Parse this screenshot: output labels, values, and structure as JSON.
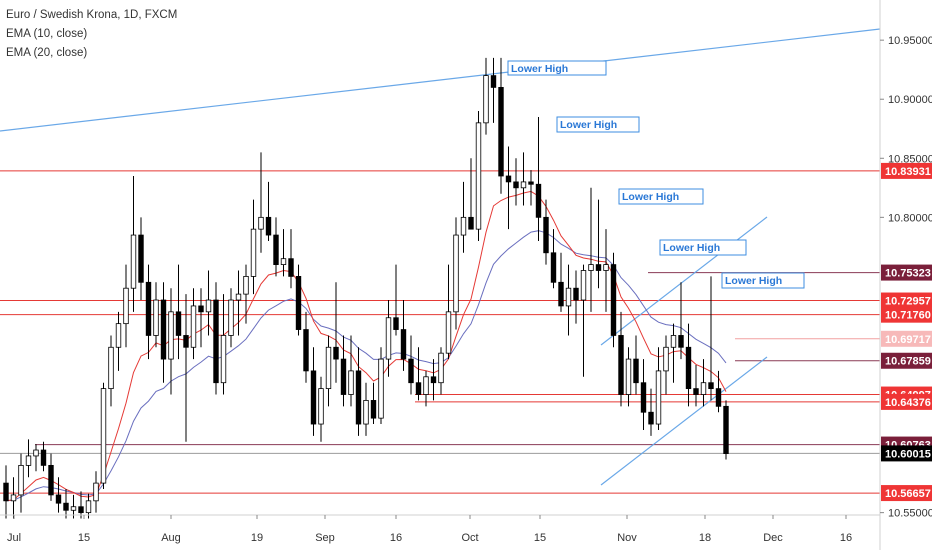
{
  "header": {
    "symbol": "Euro / Swedish Krona, 1D, FXCM",
    "indicator_1": "EMA (10, close)",
    "indicator_2": "EMA (20, close)"
  },
  "colors": {
    "bull": "#ffffff",
    "bear": "#000000",
    "ema10": "#e53935",
    "ema20": "#6a6fbf",
    "trendline": "#6aa8e8",
    "hline_red": "#e53935",
    "label_red": "#ef3535",
    "label_dark_red": "#7a1f3a",
    "label_black": "#000000",
    "annotation_border": "#3d8ee0",
    "annotation_text": "#2a78d6"
  },
  "chart_data": {
    "type": "candlestick",
    "ylim": [
      10.548,
      10.984
    ],
    "y_ticks": [
      "10.95000",
      "10.90000",
      "10.85000",
      "10.80000",
      "10.55000"
    ],
    "x_ticks": [
      "Jul",
      "15",
      "Aug",
      "19",
      "Sep",
      "16",
      "Oct",
      "15",
      "Nov",
      "18",
      "Dec",
      "16"
    ],
    "price_labels": [
      {
        "value": "10.83931",
        "style": "red"
      },
      {
        "value": "10.75323",
        "style": "dark"
      },
      {
        "value": "10.72957",
        "style": "red"
      },
      {
        "value": "10.71760",
        "style": "red"
      },
      {
        "value": "10.69717",
        "style": "light"
      },
      {
        "value": "10.67859",
        "style": "dark"
      },
      {
        "value": "10.64997",
        "style": "red"
      },
      {
        "value": "10.64376",
        "style": "red"
      },
      {
        "value": "10.60763",
        "style": "dark"
      },
      {
        "value": "10.60015",
        "style": "black"
      },
      {
        "value": "10.56657",
        "style": "red"
      }
    ],
    "annotations": [
      "Lower High",
      "Lower High",
      "Lower High",
      "Lower High",
      "Lower High"
    ],
    "candles": [
      {
        "o": 10.575,
        "h": 10.59,
        "l": 10.545,
        "c": 10.56
      },
      {
        "o": 10.56,
        "h": 10.58,
        "l": 10.545,
        "c": 10.565
      },
      {
        "o": 10.565,
        "h": 10.6,
        "l": 10.55,
        "c": 10.59
      },
      {
        "o": 10.59,
        "h": 10.612,
        "l": 10.58,
        "c": 10.598
      },
      {
        "o": 10.598,
        "h": 10.608,
        "l": 10.585,
        "c": 10.603
      },
      {
        "o": 10.603,
        "h": 10.61,
        "l": 10.585,
        "c": 10.59
      },
      {
        "o": 10.59,
        "h": 10.6,
        "l": 10.56,
        "c": 10.565
      },
      {
        "o": 10.565,
        "h": 10.58,
        "l": 10.55,
        "c": 10.558
      },
      {
        "o": 10.558,
        "h": 10.57,
        "l": 10.545,
        "c": 10.552
      },
      {
        "o": 10.552,
        "h": 10.565,
        "l": 10.545,
        "c": 10.555
      },
      {
        "o": 10.555,
        "h": 10.568,
        "l": 10.545,
        "c": 10.55
      },
      {
        "o": 10.55,
        "h": 10.566,
        "l": 10.545,
        "c": 10.56
      },
      {
        "o": 10.56,
        "h": 10.585,
        "l": 10.55,
        "c": 10.575
      },
      {
        "o": 10.575,
        "h": 10.66,
        "l": 10.57,
        "c": 10.655
      },
      {
        "o": 10.655,
        "h": 10.7,
        "l": 10.64,
        "c": 10.69
      },
      {
        "o": 10.69,
        "h": 10.72,
        "l": 10.67,
        "c": 10.71
      },
      {
        "o": 10.71,
        "h": 10.76,
        "l": 10.69,
        "c": 10.74
      },
      {
        "o": 10.74,
        "h": 10.835,
        "l": 10.72,
        "c": 10.785
      },
      {
        "o": 10.785,
        "h": 10.8,
        "l": 10.73,
        "c": 10.745
      },
      {
        "o": 10.745,
        "h": 10.76,
        "l": 10.68,
        "c": 10.7
      },
      {
        "o": 10.7,
        "h": 10.745,
        "l": 10.69,
        "c": 10.73
      },
      {
        "o": 10.73,
        "h": 10.745,
        "l": 10.66,
        "c": 10.68
      },
      {
        "o": 10.68,
        "h": 10.74,
        "l": 10.65,
        "c": 10.72
      },
      {
        "o": 10.72,
        "h": 10.76,
        "l": 10.68,
        "c": 10.7
      },
      {
        "o": 10.7,
        "h": 10.735,
        "l": 10.61,
        "c": 10.69
      },
      {
        "o": 10.69,
        "h": 10.74,
        "l": 10.68,
        "c": 10.725
      },
      {
        "o": 10.725,
        "h": 10.74,
        "l": 10.69,
        "c": 10.72
      },
      {
        "o": 10.72,
        "h": 10.755,
        "l": 10.7,
        "c": 10.73
      },
      {
        "o": 10.73,
        "h": 10.745,
        "l": 10.65,
        "c": 10.66
      },
      {
        "o": 10.66,
        "h": 10.735,
        "l": 10.65,
        "c": 10.7
      },
      {
        "o": 10.7,
        "h": 10.74,
        "l": 10.69,
        "c": 10.73
      },
      {
        "o": 10.73,
        "h": 10.755,
        "l": 10.7,
        "c": 10.735
      },
      {
        "o": 10.735,
        "h": 10.76,
        "l": 10.71,
        "c": 10.75
      },
      {
        "o": 10.75,
        "h": 10.815,
        "l": 10.735,
        "c": 10.79
      },
      {
        "o": 10.79,
        "h": 10.855,
        "l": 10.77,
        "c": 10.8
      },
      {
        "o": 10.8,
        "h": 10.83,
        "l": 10.78,
        "c": 10.785
      },
      {
        "o": 10.785,
        "h": 10.8,
        "l": 10.75,
        "c": 10.76
      },
      {
        "o": 10.76,
        "h": 10.79,
        "l": 10.75,
        "c": 10.765
      },
      {
        "o": 10.765,
        "h": 10.79,
        "l": 10.74,
        "c": 10.75
      },
      {
        "o": 10.75,
        "h": 10.76,
        "l": 10.7,
        "c": 10.705
      },
      {
        "o": 10.705,
        "h": 10.72,
        "l": 10.66,
        "c": 10.67
      },
      {
        "o": 10.67,
        "h": 10.69,
        "l": 10.615,
        "c": 10.625
      },
      {
        "o": 10.625,
        "h": 10.665,
        "l": 10.61,
        "c": 10.655
      },
      {
        "o": 10.655,
        "h": 10.7,
        "l": 10.64,
        "c": 10.69
      },
      {
        "o": 10.69,
        "h": 10.745,
        "l": 10.66,
        "c": 10.68
      },
      {
        "o": 10.68,
        "h": 10.7,
        "l": 10.64,
        "c": 10.65
      },
      {
        "o": 10.65,
        "h": 10.7,
        "l": 10.64,
        "c": 10.67
      },
      {
        "o": 10.67,
        "h": 10.69,
        "l": 10.615,
        "c": 10.625
      },
      {
        "o": 10.625,
        "h": 10.66,
        "l": 10.615,
        "c": 10.645
      },
      {
        "o": 10.645,
        "h": 10.66,
        "l": 10.625,
        "c": 10.63
      },
      {
        "o": 10.63,
        "h": 10.69,
        "l": 10.625,
        "c": 10.68
      },
      {
        "o": 10.68,
        "h": 10.73,
        "l": 10.665,
        "c": 10.715
      },
      {
        "o": 10.715,
        "h": 10.76,
        "l": 10.7,
        "c": 10.705
      },
      {
        "o": 10.705,
        "h": 10.73,
        "l": 10.67,
        "c": 10.68
      },
      {
        "o": 10.68,
        "h": 10.7,
        "l": 10.65,
        "c": 10.66
      },
      {
        "o": 10.66,
        "h": 10.69,
        "l": 10.645,
        "c": 10.65
      },
      {
        "o": 10.65,
        "h": 10.67,
        "l": 10.64,
        "c": 10.665
      },
      {
        "o": 10.665,
        "h": 10.68,
        "l": 10.645,
        "c": 10.66
      },
      {
        "o": 10.66,
        "h": 10.69,
        "l": 10.65,
        "c": 10.685
      },
      {
        "o": 10.685,
        "h": 10.76,
        "l": 10.68,
        "c": 10.72
      },
      {
        "o": 10.72,
        "h": 10.8,
        "l": 10.705,
        "c": 10.785
      },
      {
        "o": 10.785,
        "h": 10.83,
        "l": 10.77,
        "c": 10.8
      },
      {
        "o": 10.8,
        "h": 10.85,
        "l": 10.79,
        "c": 10.79
      },
      {
        "o": 10.79,
        "h": 10.89,
        "l": 10.78,
        "c": 10.88
      },
      {
        "o": 10.88,
        "h": 10.935,
        "l": 10.87,
        "c": 10.92
      },
      {
        "o": 10.92,
        "h": 10.935,
        "l": 10.88,
        "c": 10.91
      },
      {
        "o": 10.91,
        "h": 10.935,
        "l": 10.82,
        "c": 10.835
      },
      {
        "o": 10.835,
        "h": 10.86,
        "l": 10.79,
        "c": 10.83
      },
      {
        "o": 10.83,
        "h": 10.85,
        "l": 10.81,
        "c": 10.825
      },
      {
        "o": 10.825,
        "h": 10.855,
        "l": 10.81,
        "c": 10.83
      },
      {
        "o": 10.83,
        "h": 10.84,
        "l": 10.81,
        "c": 10.828
      },
      {
        "o": 10.828,
        "h": 10.885,
        "l": 10.78,
        "c": 10.8
      },
      {
        "o": 10.8,
        "h": 10.815,
        "l": 10.76,
        "c": 10.77
      },
      {
        "o": 10.77,
        "h": 10.79,
        "l": 10.74,
        "c": 10.745
      },
      {
        "o": 10.745,
        "h": 10.77,
        "l": 10.72,
        "c": 10.725
      },
      {
        "o": 10.725,
        "h": 10.76,
        "l": 10.7,
        "c": 10.74
      },
      {
        "o": 10.74,
        "h": 10.755,
        "l": 10.71,
        "c": 10.73
      },
      {
        "o": 10.73,
        "h": 10.76,
        "l": 10.665,
        "c": 10.755
      },
      {
        "o": 10.755,
        "h": 10.825,
        "l": 10.72,
        "c": 10.76
      },
      {
        "o": 10.76,
        "h": 10.815,
        "l": 10.74,
        "c": 10.755
      },
      {
        "o": 10.755,
        "h": 10.79,
        "l": 10.72,
        "c": 10.76
      },
      {
        "o": 10.76,
        "h": 10.77,
        "l": 10.69,
        "c": 10.7
      },
      {
        "o": 10.7,
        "h": 10.72,
        "l": 10.64,
        "c": 10.65
      },
      {
        "o": 10.65,
        "h": 10.69,
        "l": 10.64,
        "c": 10.68
      },
      {
        "o": 10.68,
        "h": 10.7,
        "l": 10.65,
        "c": 10.66
      },
      {
        "o": 10.66,
        "h": 10.68,
        "l": 10.62,
        "c": 10.635
      },
      {
        "o": 10.635,
        "h": 10.655,
        "l": 10.615,
        "c": 10.625
      },
      {
        "o": 10.625,
        "h": 10.69,
        "l": 10.62,
        "c": 10.67
      },
      {
        "o": 10.67,
        "h": 10.7,
        "l": 10.65,
        "c": 10.69
      },
      {
        "o": 10.69,
        "h": 10.71,
        "l": 10.66,
        "c": 10.7
      },
      {
        "o": 10.7,
        "h": 10.745,
        "l": 10.68,
        "c": 10.69
      },
      {
        "o": 10.69,
        "h": 10.71,
        "l": 10.64,
        "c": 10.655
      },
      {
        "o": 10.655,
        "h": 10.675,
        "l": 10.64,
        "c": 10.65
      },
      {
        "o": 10.65,
        "h": 10.68,
        "l": 10.64,
        "c": 10.66
      },
      {
        "o": 10.66,
        "h": 10.75,
        "l": 10.645,
        "c": 10.655
      },
      {
        "o": 10.655,
        "h": 10.67,
        "l": 10.635,
        "c": 10.64
      },
      {
        "o": 10.64,
        "h": 10.645,
        "l": 10.595,
        "c": 10.6
      }
    ],
    "ema10": [],
    "ema20": []
  }
}
